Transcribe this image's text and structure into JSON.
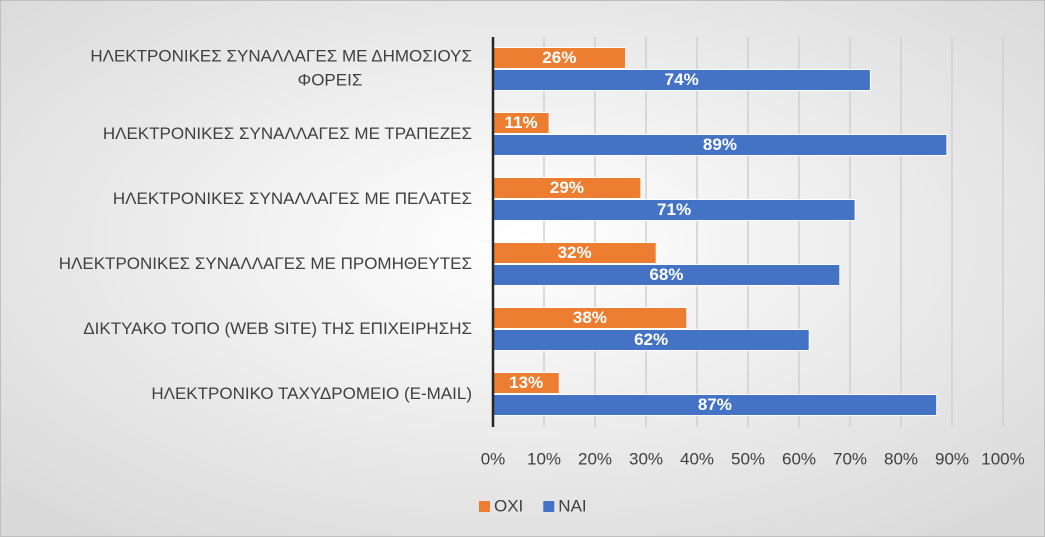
{
  "chart_data": {
    "type": "hbar",
    "categories": [
      "ΗΛΕΚΤΡΟΝΙΚΕΣ ΣΥΝΑΛΛΑΓΕΣ ΜΕ ΔΗΜΟΣΙΟΥΣ ΦΟΡΕΙΣ",
      "ΗΛΕΚΤΡΟΝΙΚΕΣ ΣΥΝΑΛΛΑΓΕΣ ΜΕ ΤΡΑΠΕΖΕΣ",
      "ΗΛΕΚΤΡΟΝΙΚΕΣ ΣΥΝΑΛΛΑΓΕΣ ΜΕ ΠΕΛΑΤΕΣ",
      "ΗΛΕΚΤΡΟΝΙΚΕΣ ΣΥΝΑΛΛΑΓΕΣ ΜΕ ΠΡΟΜΗΘΕΥΤΕΣ",
      "ΔΙΚΤΥΑΚΟ ΤΟΠΟ (WEB SITE) ΤΗΣ ΕΠΙΧΕΙΡΗΣΗΣ",
      "ΗΛΕΚΤΡΟΝΙΚΟ ΤΑΧΥΔΡΟΜΕΙΟ (E-MAIL)"
    ],
    "series": [
      {
        "name": "ΟΧΙ",
        "color": "#ED7D31",
        "values": [
          26,
          11,
          29,
          32,
          38,
          13
        ],
        "value_labels": [
          "26%",
          "11%",
          "29%",
          "32%",
          "38%",
          "13%"
        ]
      },
      {
        "name": "ΝΑΙ",
        "color": "#4472C4",
        "values": [
          74,
          89,
          71,
          68,
          62,
          87
        ],
        "value_labels": [
          "74%",
          "89%",
          "71%",
          "68%",
          "62%",
          "87%"
        ]
      }
    ],
    "xlim": [
      0,
      100
    ],
    "xticks": [
      {
        "value": 0,
        "label": "0%"
      },
      {
        "value": 10,
        "label": "10%"
      },
      {
        "value": 20,
        "label": "20%"
      },
      {
        "value": 30,
        "label": "30%"
      },
      {
        "value": 40,
        "label": "40%"
      },
      {
        "value": 50,
        "label": "50%"
      },
      {
        "value": 60,
        "label": "60%"
      },
      {
        "value": 70,
        "label": "70%"
      },
      {
        "value": 80,
        "label": "80%"
      },
      {
        "value": 90,
        "label": "90%"
      },
      {
        "value": 100,
        "label": "100%"
      }
    ],
    "grid": true,
    "legend": "bottom"
  }
}
